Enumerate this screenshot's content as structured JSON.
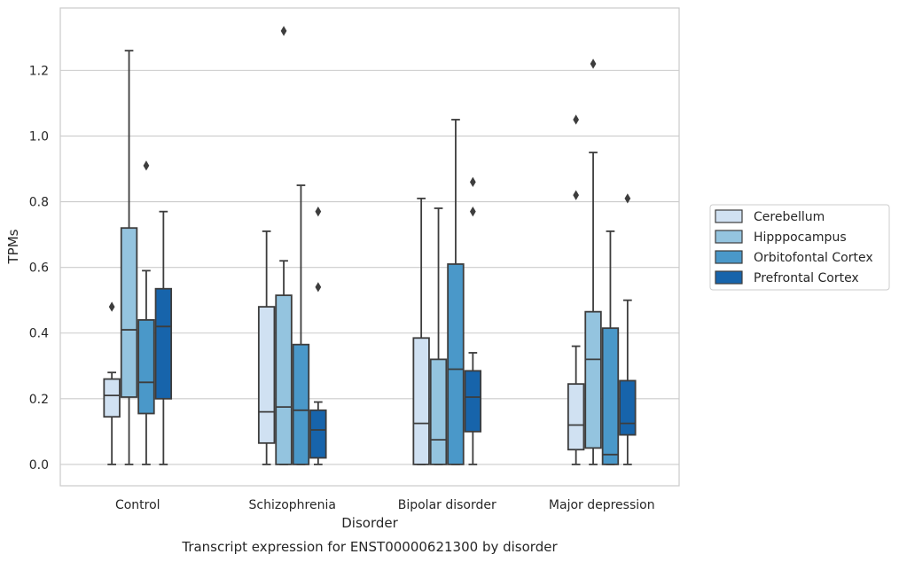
{
  "chart_data": {
    "type": "boxplot",
    "title": "",
    "caption": "Transcript expression for ENST00000621300 by disorder",
    "xlabel": "Disorder",
    "ylabel": "TPMs",
    "ylim": [
      -0.065,
      1.39
    ],
    "yticks": [
      "0.0",
      "0.2",
      "0.4",
      "0.6",
      "0.8",
      "1.0",
      "1.2"
    ],
    "grid": "horizontal",
    "legend_position": "right",
    "categories": [
      "Control",
      "Schizophrenia",
      "Bipolar disorder",
      "Major depression"
    ],
    "series": [
      {
        "name": "Cerebellum",
        "color": "#d0e1f2",
        "boxes": [
          {
            "whislo": 0.0,
            "q1": 0.145,
            "med": 0.21,
            "q3": 0.26,
            "whishi": 0.28,
            "fliers": [
              0.48
            ]
          },
          {
            "whislo": 0.0,
            "q1": 0.065,
            "med": 0.16,
            "q3": 0.48,
            "whishi": 0.71,
            "fliers": []
          },
          {
            "whislo": 0.0,
            "q1": 0.0,
            "med": 0.125,
            "q3": 0.385,
            "whishi": 0.81,
            "fliers": []
          },
          {
            "whislo": 0.0,
            "q1": 0.045,
            "med": 0.12,
            "q3": 0.245,
            "whishi": 0.36,
            "fliers": [
              0.82,
              1.05
            ]
          }
        ]
      },
      {
        "name": "Hipppocampus",
        "color": "#94c4df",
        "boxes": [
          {
            "whislo": 0.0,
            "q1": 0.205,
            "med": 0.41,
            "q3": 0.72,
            "whishi": 1.26,
            "fliers": []
          },
          {
            "whislo": 0.0,
            "q1": 0.0,
            "med": 0.175,
            "q3": 0.515,
            "whishi": 0.62,
            "fliers": [
              1.32
            ]
          },
          {
            "whislo": 0.0,
            "q1": 0.0,
            "med": 0.075,
            "q3": 0.32,
            "whishi": 0.78,
            "fliers": []
          },
          {
            "whislo": 0.0,
            "q1": 0.05,
            "med": 0.32,
            "q3": 0.465,
            "whishi": 0.95,
            "fliers": [
              1.22
            ]
          }
        ]
      },
      {
        "name": "Orbitofontal Cortex",
        "color": "#4a98c9",
        "boxes": [
          {
            "whislo": 0.0,
            "q1": 0.155,
            "med": 0.25,
            "q3": 0.44,
            "whishi": 0.59,
            "fliers": [
              0.91
            ]
          },
          {
            "whislo": 0.0,
            "q1": 0.0,
            "med": 0.165,
            "q3": 0.365,
            "whishi": 0.85,
            "fliers": []
          },
          {
            "whislo": 0.0,
            "q1": 0.0,
            "med": 0.29,
            "q3": 0.61,
            "whishi": 1.05,
            "fliers": []
          },
          {
            "whislo": 0.0,
            "q1": 0.0,
            "med": 0.03,
            "q3": 0.415,
            "whishi": 0.71,
            "fliers": []
          }
        ]
      },
      {
        "name": "Prefrontal Cortex",
        "color": "#1764ab",
        "boxes": [
          {
            "whislo": 0.0,
            "q1": 0.2,
            "med": 0.42,
            "q3": 0.535,
            "whishi": 0.77,
            "fliers": []
          },
          {
            "whislo": 0.0,
            "q1": 0.02,
            "med": 0.105,
            "q3": 0.165,
            "whishi": 0.19,
            "fliers": [
              0.54,
              0.77
            ]
          },
          {
            "whislo": 0.0,
            "q1": 0.1,
            "med": 0.205,
            "q3": 0.285,
            "whishi": 0.34,
            "fliers": [
              0.77,
              0.86
            ]
          },
          {
            "whislo": 0.0,
            "q1": 0.09,
            "med": 0.125,
            "q3": 0.255,
            "whishi": 0.5,
            "fliers": [
              0.81
            ]
          }
        ]
      }
    ]
  }
}
